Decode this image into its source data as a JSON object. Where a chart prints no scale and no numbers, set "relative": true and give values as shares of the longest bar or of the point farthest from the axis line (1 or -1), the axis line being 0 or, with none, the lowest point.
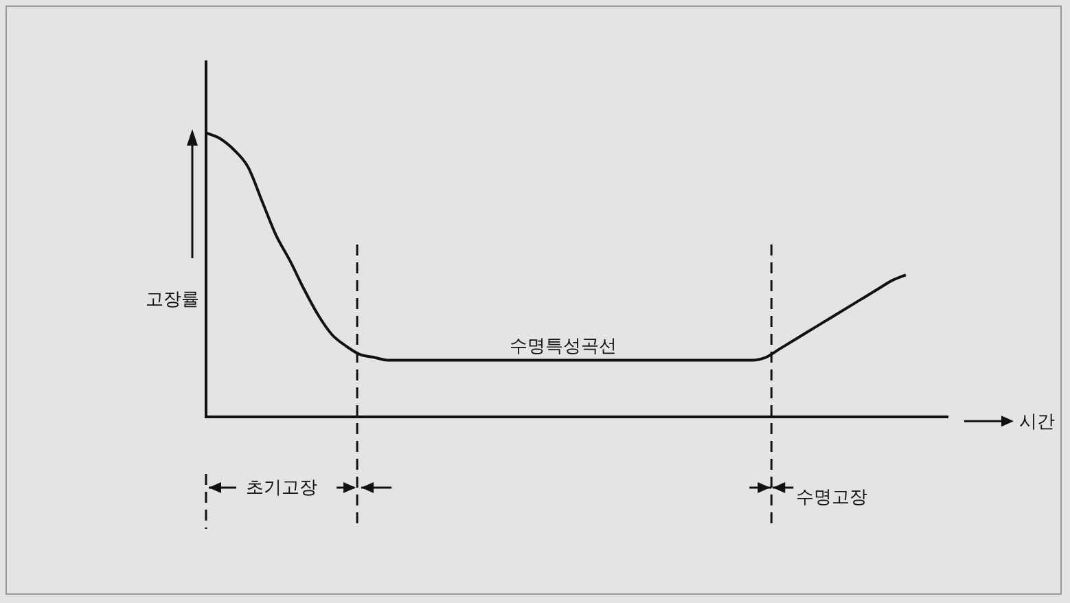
{
  "chart_data": {
    "type": "line",
    "relative": true,
    "ylabel": "고장률",
    "xlabel": "시간",
    "categories": [
      null,
      null,
      null,
      null,
      null,
      null,
      null,
      null,
      null,
      null,
      null,
      null,
      null,
      null,
      null,
      null,
      null,
      null,
      null,
      null,
      null,
      null,
      null,
      null,
      null,
      null,
      null,
      null,
      null,
      null,
      null,
      null,
      null,
      null,
      null,
      null,
      null,
      null,
      null,
      null,
      null,
      null,
      null,
      null,
      null,
      null,
      null,
      null,
      null,
      null,
      null,
      null,
      null,
      null
    ],
    "series": [
      {
        "color": "#111111",
        "values": [
          1,
          0.98,
          0.94,
          0.88,
          0.76,
          0.64,
          0.55,
          0.45,
          0.36,
          0.29,
          0.25,
          0.22,
          0.21,
          0.2,
          0.2,
          0.2,
          0.2,
          0.2,
          0.2,
          0.2,
          0.2,
          0.2,
          0.2,
          0.2,
          0.2,
          0.2,
          0.2,
          0.2,
          0.2,
          0.2,
          0.2,
          0.2,
          0.2,
          0.2,
          0.2,
          0.2,
          0.2,
          0.2,
          0.2,
          0.2,
          0.21,
          0.24,
          0.27,
          0.3,
          0.33,
          0.36,
          0.39,
          0.42,
          0.45,
          0.48,
          0.5,
          null,
          null,
          null
        ]
      }
    ],
    "annotations": [
      "수명특성곡선",
      "초기고장",
      "수명고장"
    ],
    "grid": false,
    "legend": false,
    "marker": "none",
    "line_style": "solid"
  }
}
